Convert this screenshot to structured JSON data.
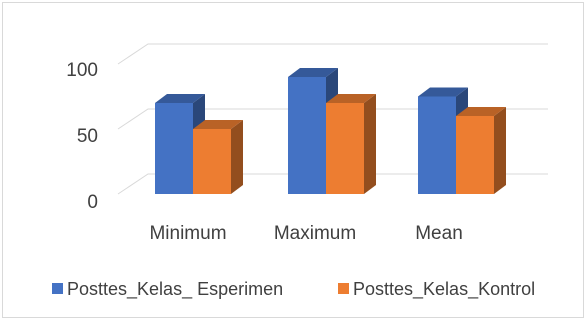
{
  "chart_data": {
    "type": "bar",
    "categories": [
      "Minimum",
      "Maximum",
      "Mean"
    ],
    "series": [
      {
        "name": "Posttes_Kelas_ Esperimen",
        "values": [
          70,
          90,
          75
        ],
        "color": "#4472c4"
      },
      {
        "name": "Posttes_Kelas_Kontrol",
        "values": [
          50,
          70,
          60
        ],
        "color": "#ed7d31"
      }
    ],
    "y_ticks": [
      "0",
      "50",
      "100"
    ],
    "ylim": [
      0,
      100
    ],
    "grid": true,
    "three_d": true,
    "legend_position": "bottom"
  }
}
